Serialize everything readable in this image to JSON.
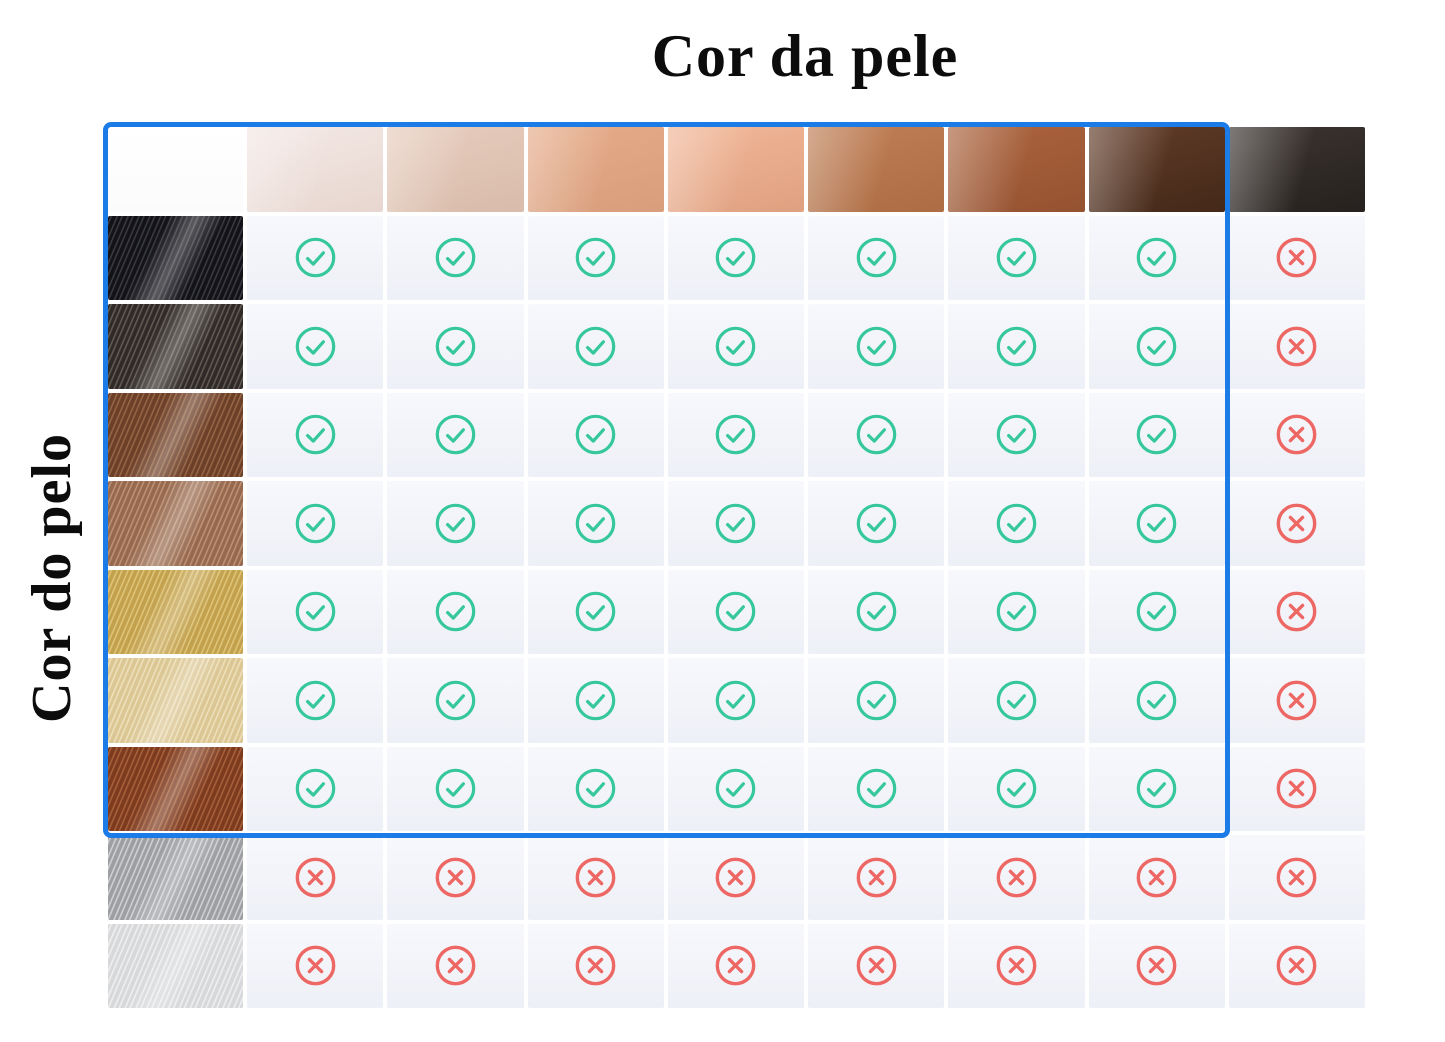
{
  "title": "Cor da pele",
  "row_axis_label": "Cor do pelo",
  "colors": {
    "check_green": "#36c89c",
    "cross_red": "#ed6864",
    "highlight_border_blue": "#1b7ce8",
    "cell_background_top": "#f7f8fc",
    "cell_background_bottom": "#eef0f7",
    "grid_gap": "#ffffff",
    "page_background": "#ffffff",
    "title_text": "#0c0c0c"
  },
  "skin_tones": [
    {
      "name": "skin-tone-1-porcelain",
      "base": "#f2e6e2",
      "shade": "#e8d7d0"
    },
    {
      "name": "skin-tone-2-light-beige",
      "base": "#e5cabb",
      "shade": "#d9bcab"
    },
    {
      "name": "skin-tone-3-light-tan",
      "base": "#e4aa88",
      "shade": "#d99f7d"
    },
    {
      "name": "skin-tone-4-peach",
      "base": "#efb495",
      "shade": "#e0a181"
    },
    {
      "name": "skin-tone-5-tan",
      "base": "#bd7c53",
      "shade": "#ae6d44"
    },
    {
      "name": "skin-tone-6-brown",
      "base": "#a8613c",
      "shade": "#965331"
    },
    {
      "name": "skin-tone-7-dark-brown",
      "base": "#5d3926",
      "shade": "#452919"
    },
    {
      "name": "skin-tone-8-deep-brown-black",
      "base": "#39322e",
      "shade": "#27221f"
    }
  ],
  "hair_colors": [
    {
      "name": "hair-1-black",
      "base": "#121217",
      "streak": "#44444e"
    },
    {
      "name": "hair-2-dark-brown",
      "base": "#2f2a27",
      "streak": "#6f655e"
    },
    {
      "name": "hair-3-brown",
      "base": "#6c3f29",
      "streak": "#a06f4b"
    },
    {
      "name": "hair-4-light-brown",
      "base": "#96694f",
      "streak": "#c69b7d"
    },
    {
      "name": "hair-5-golden-blonde",
      "base": "#c2a04c",
      "streak": "#e6ce85"
    },
    {
      "name": "hair-6-light-blonde",
      "base": "#dbc694",
      "streak": "#f2e7c4"
    },
    {
      "name": "hair-7-red-copper",
      "base": "#7c3a1f",
      "streak": "#b26a40"
    },
    {
      "name": "hair-8-gray",
      "base": "#9d9ea2",
      "streak": "#dcdde0"
    },
    {
      "name": "hair-9-white",
      "base": "#d7d8da",
      "streak": "#f5f5f6"
    }
  ],
  "marks": {
    "compatible": "check-circle",
    "incompatible": "cross-circle"
  },
  "chart_data": {
    "type": "table",
    "title": "Cor da pele",
    "ylabel": "Cor do pelo",
    "columns": [
      "skin-tone-1-porcelain",
      "skin-tone-2-light-beige",
      "skin-tone-3-light-tan",
      "skin-tone-4-peach",
      "skin-tone-5-tan",
      "skin-tone-6-brown",
      "skin-tone-7-dark-brown",
      "skin-tone-8-deep-brown-black"
    ],
    "rows": [
      "hair-1-black",
      "hair-2-dark-brown",
      "hair-3-brown",
      "hair-4-light-brown",
      "hair-5-golden-blonde",
      "hair-6-light-blonde",
      "hair-7-red-copper",
      "hair-8-gray",
      "hair-9-white"
    ],
    "values": [
      [
        "yes",
        "yes",
        "yes",
        "yes",
        "yes",
        "yes",
        "yes",
        "no"
      ],
      [
        "yes",
        "yes",
        "yes",
        "yes",
        "yes",
        "yes",
        "yes",
        "no"
      ],
      [
        "yes",
        "yes",
        "yes",
        "yes",
        "yes",
        "yes",
        "yes",
        "no"
      ],
      [
        "yes",
        "yes",
        "yes",
        "yes",
        "yes",
        "yes",
        "yes",
        "no"
      ],
      [
        "yes",
        "yes",
        "yes",
        "yes",
        "yes",
        "yes",
        "yes",
        "no"
      ],
      [
        "yes",
        "yes",
        "yes",
        "yes",
        "yes",
        "yes",
        "yes",
        "no"
      ],
      [
        "yes",
        "yes",
        "yes",
        "yes",
        "yes",
        "yes",
        "yes",
        "no"
      ],
      [
        "no",
        "no",
        "no",
        "no",
        "no",
        "no",
        "no",
        "no"
      ],
      [
        "no",
        "no",
        "no",
        "no",
        "no",
        "no",
        "no",
        "no"
      ]
    ],
    "highlight_region": {
      "style": "blue-outline",
      "row_range": [
        "hair-1-black",
        "hair-7-red-copper"
      ],
      "column_range": [
        "skin-tone-1-porcelain",
        "skin-tone-7-dark-brown"
      ]
    },
    "legend_position": "none",
    "grid": true
  }
}
